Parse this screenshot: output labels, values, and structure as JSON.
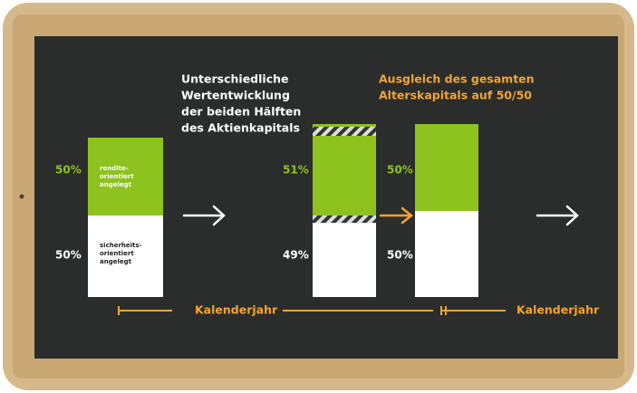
{
  "left_text": [
    "Unterschiedliche",
    "Wertentwicklung",
    "der beiden Hälften",
    "des Aktienkapitals"
  ],
  "right_text": [
    "Ausgleich des gesamten",
    "Alterskapitals auf 50/50"
  ],
  "columns": [
    {
      "top_label": "50%",
      "top_text": [
        "rendite-",
        "orientiert",
        "angelegt"
      ],
      "bottom_label": "50%",
      "bottom_text": [
        "sicherheits-",
        "orientiert",
        "angelegt"
      ]
    },
    {
      "top_label": "51%",
      "bottom_label": "49%"
    },
    {
      "top_label": "50%",
      "bottom_label": "50%"
    }
  ],
  "timeline": [
    "Kalenderjahr",
    "Kalenderjahr"
  ]
}
